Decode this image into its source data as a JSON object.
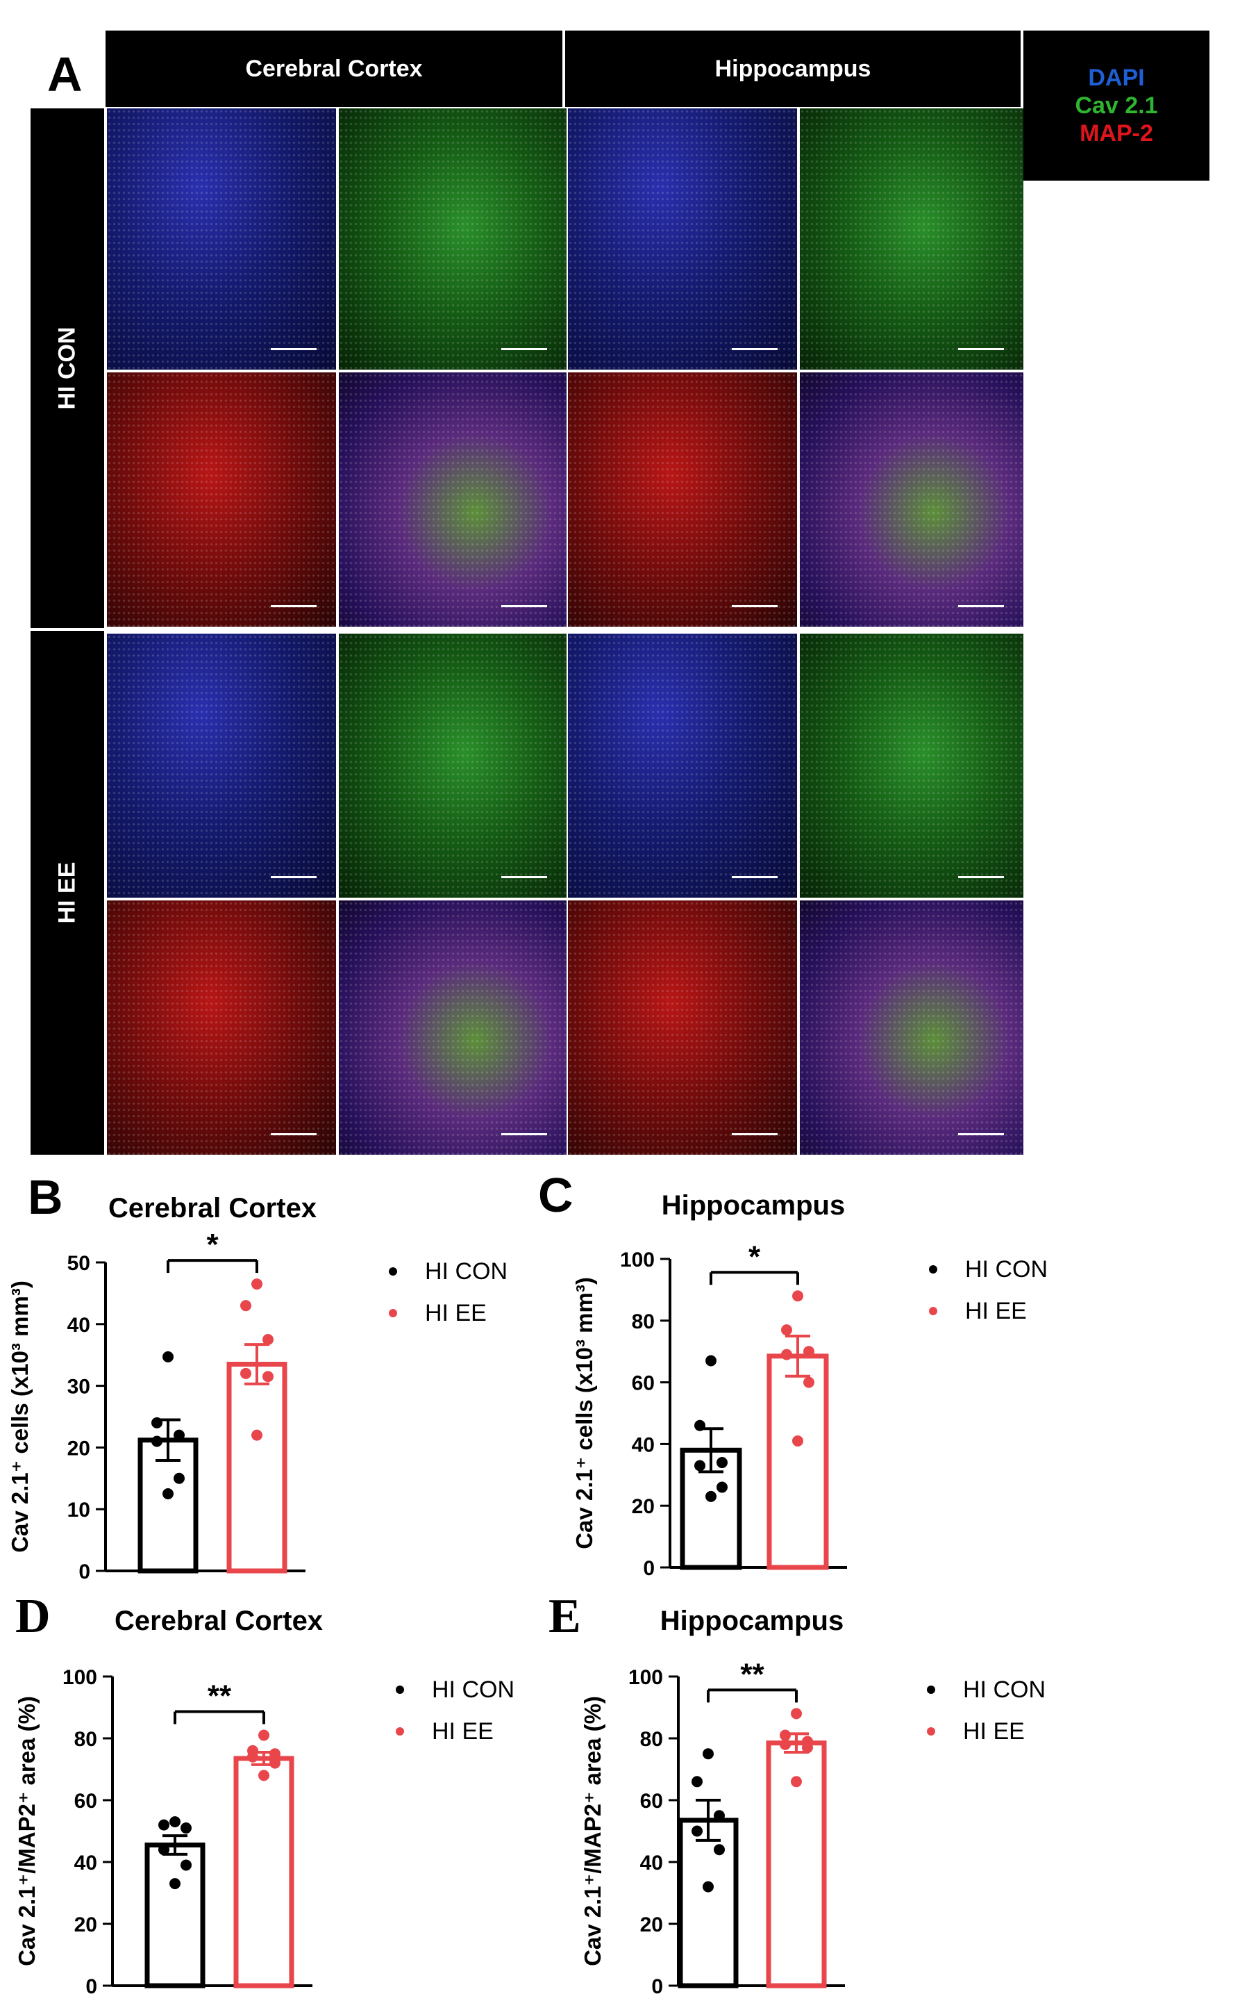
{
  "panel_a": {
    "letter": "A",
    "columns": [
      "Cerebral Cortex",
      "Hippocampus"
    ],
    "rows": [
      "HI CON",
      "HI EE"
    ],
    "legend": [
      {
        "label": "DAPI",
        "color": "#1f5fd6"
      },
      {
        "label": "Cav 2.1",
        "color": "#2fb52f"
      },
      {
        "label": "MAP-2",
        "color": "#e0151b"
      }
    ]
  },
  "legend_groups": [
    {
      "label": "HI CON",
      "color": "#000000"
    },
    {
      "label": "HI EE",
      "color": "#e8464b"
    }
  ],
  "chart_data": [
    {
      "id": "B",
      "type": "bar",
      "title": "Cerebral Cortex",
      "ylabel": "Cav 2.1⁺ cells (x10³ mm³)",
      "ylim": [
        0,
        50
      ],
      "yticks": [
        0,
        10,
        20,
        30,
        40,
        50
      ],
      "categories": [
        "HI CON",
        "HI EE"
      ],
      "values": [
        21.2,
        33.5
      ],
      "sem": [
        3.3,
        3.2
      ],
      "points": [
        [
          34.7,
          24,
          22,
          21,
          15,
          12.5
        ],
        [
          46.5,
          43,
          37.5,
          32,
          31.5,
          22
        ]
      ],
      "significance": "*"
    },
    {
      "id": "C",
      "type": "bar",
      "title": "Hippocampus",
      "ylabel": "Cav 2.1⁺ cells (x10³ mm³)",
      "ylim": [
        0,
        100
      ],
      "yticks": [
        0,
        20,
        40,
        60,
        80,
        100
      ],
      "categories": [
        "HI CON",
        "HI EE"
      ],
      "values": [
        38,
        68.5
      ],
      "sem": [
        7,
        6.5
      ],
      "points": [
        [
          67,
          46,
          34,
          33,
          26,
          23
        ],
        [
          88,
          77,
          70,
          69,
          60,
          41
        ]
      ],
      "significance": "*"
    },
    {
      "id": "D",
      "type": "bar",
      "title": "Cerebral Cortex",
      "ylabel": "Cav 2.1⁺/MAP2⁺ area (%)",
      "ylim": [
        0,
        100
      ],
      "yticks": [
        0,
        20,
        40,
        60,
        80,
        100
      ],
      "categories": [
        "HI CON",
        "HI EE"
      ],
      "values": [
        45.5,
        73.5
      ],
      "sem": [
        3,
        2
      ],
      "points": [
        [
          53,
          52,
          51,
          44,
          39,
          33
        ],
        [
          81,
          76,
          75,
          74,
          72,
          68
        ]
      ],
      "significance": "**"
    },
    {
      "id": "E",
      "type": "bar",
      "title": "Hippocampus",
      "ylabel": "Cav 2.1⁺/MAP2⁺ area (%)",
      "ylim": [
        0,
        100
      ],
      "yticks": [
        0,
        20,
        40,
        60,
        80,
        100
      ],
      "categories": [
        "HI CON",
        "HI EE"
      ],
      "values": [
        53.5,
        78.5
      ],
      "sem": [
        6.5,
        3
      ],
      "points": [
        [
          75,
          66,
          55,
          50,
          44,
          32
        ],
        [
          88,
          81,
          79,
          78,
          77,
          66
        ]
      ],
      "significance": "**"
    }
  ]
}
